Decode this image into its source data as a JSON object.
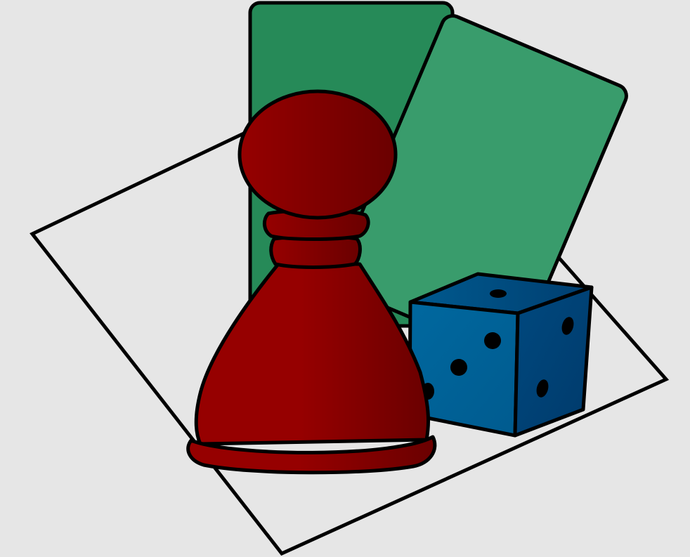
{
  "illustration": {
    "subject": "board-game-icon",
    "colors": {
      "background": "#e6e6e6",
      "outline": "#000000",
      "board_fill": "#e6e6e6",
      "card_back": "#268a58",
      "card_front": "#399c6c",
      "pawn_light": "#960000",
      "pawn_dark": "#6a0000",
      "die_light": "#00689f",
      "die_dark": "#003a6b",
      "pip": "#000000"
    },
    "die": {
      "top_face_pips": 1,
      "front_face_pips": 3,
      "right_face_pips": 2
    }
  }
}
